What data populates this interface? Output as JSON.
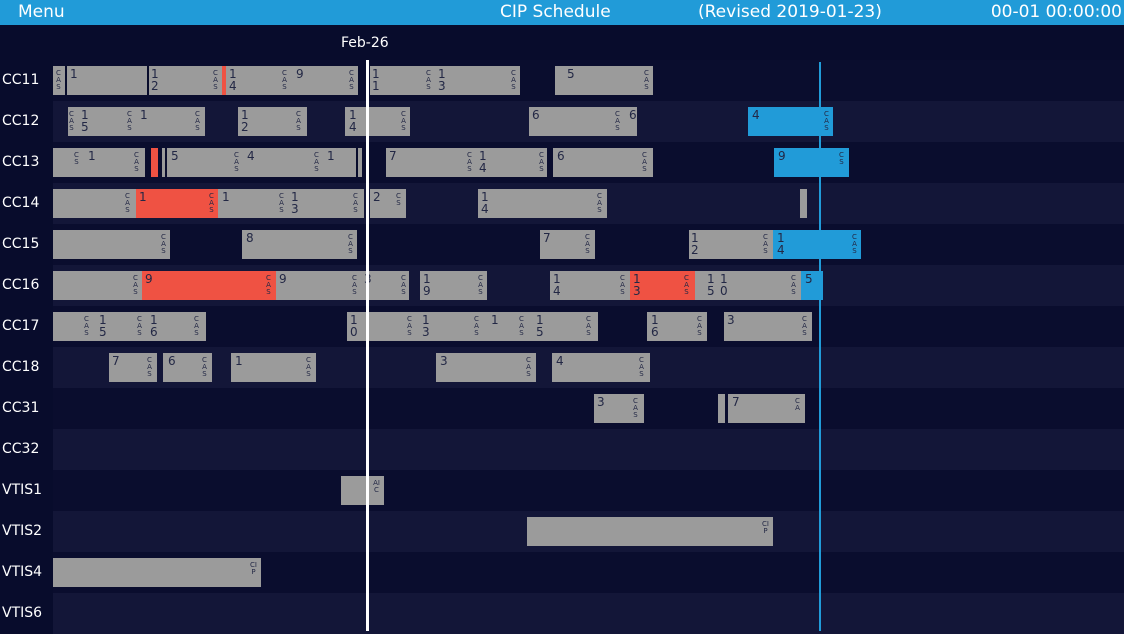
{
  "header": {
    "menu_label": "Menu",
    "title": "CIP Schedule",
    "revised": "(Revised 2019-01-23)",
    "clock": "00-01 00:00:00"
  },
  "timeline": {
    "date_label": "Feb-26"
  },
  "colors": {
    "header_bg": "#219bd8",
    "bar": "#9b9b9b",
    "alarm": "#ef5243",
    "active": "#219bd8",
    "background": "#080c2c"
  },
  "rows": [
    {
      "label": "CC11"
    },
    {
      "label": "CC12"
    },
    {
      "label": "CC13"
    },
    {
      "label": "CC14"
    },
    {
      "label": "CC15"
    },
    {
      "label": "CC16"
    },
    {
      "label": "CC17"
    },
    {
      "label": "CC18"
    },
    {
      "label": "CC31"
    },
    {
      "label": "CC32"
    },
    {
      "label": "VTIS1"
    },
    {
      "label": "VTIS2"
    },
    {
      "label": "VTIS4"
    },
    {
      "label": "VTIS6"
    }
  ],
  "bar_text": {
    "one": "1",
    "two": "2",
    "three": "3",
    "four": "4",
    "five": "5",
    "six": "6",
    "seven": "7",
    "eight": "8",
    "nine": "9",
    "zero": "0",
    "cas": "CAS",
    "cs": "CS",
    "ca": "CA",
    "cip": "CIP",
    "aic": "AIC"
  }
}
